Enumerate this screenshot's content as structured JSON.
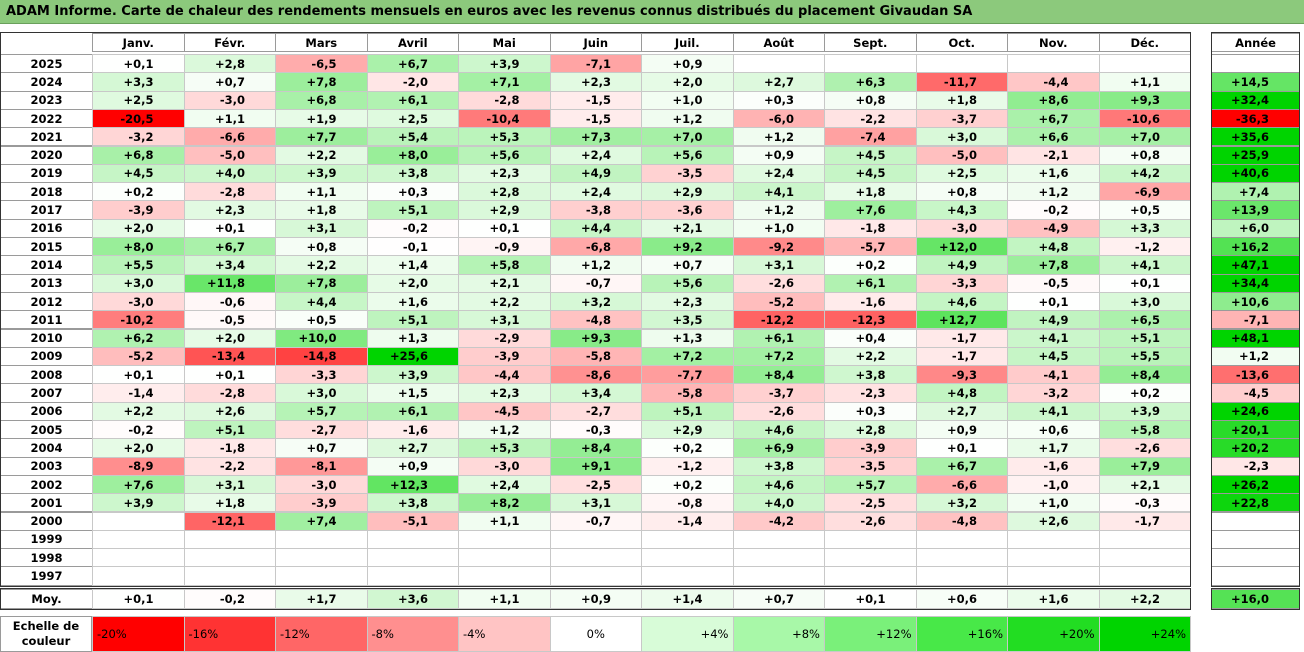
{
  "title": "ADAM Informe. Carte de chaleur des rendements mensuels en euros avec les revenus connus distribués du placement Givaudan SA",
  "chart_data": {
    "type": "heatmap",
    "title": "ADAM Informe. Carte de chaleur des rendements mensuels en euros avec les revenus connus distribués du placement Givaudan SA",
    "months": [
      "Janv.",
      "Févr.",
      "Mars",
      "Avril",
      "Mai",
      "Juin",
      "Juil.",
      "Août",
      "Sept.",
      "Oct.",
      "Nov.",
      "Déc."
    ],
    "year_header": "Année",
    "rows": [
      {
        "year": "2025",
        "values": [
          "+0,1",
          "+2,8",
          "-6,5",
          "+6,7",
          "+3,9",
          "-7,1",
          "+0,9",
          "",
          "",
          "",
          "",
          ""
        ],
        "annual": ""
      },
      {
        "year": "2024",
        "values": [
          "+3,3",
          "+0,7",
          "+7,8",
          "-2,0",
          "+7,1",
          "+2,3",
          "+2,0",
          "+2,7",
          "+6,3",
          "-11,7",
          "-4,4",
          "+1,1"
        ],
        "annual": "+14,5"
      },
      {
        "year": "2023",
        "values": [
          "+2,5",
          "-3,0",
          "+6,8",
          "+6,1",
          "-2,8",
          "-1,5",
          "+1,0",
          "+0,3",
          "+0,8",
          "+1,8",
          "+8,6",
          "+9,3"
        ],
        "annual": "+32,4"
      },
      {
        "year": "2022",
        "values": [
          "-20,5",
          "+1,1",
          "+1,9",
          "+2,5",
          "-10,4",
          "-1,5",
          "+1,2",
          "-6,0",
          "-2,2",
          "-3,7",
          "+6,7",
          "-10,6"
        ],
        "annual": "-36,3"
      },
      {
        "year": "2021",
        "values": [
          "-3,2",
          "-6,6",
          "+7,7",
          "+5,4",
          "+5,3",
          "+7,3",
          "+7,0",
          "+1,2",
          "-7,4",
          "+3,0",
          "+6,6",
          "+7,0"
        ],
        "annual": "+35,6"
      },
      {
        "year": "2020",
        "values": [
          "+6,8",
          "-5,0",
          "+2,2",
          "+8,0",
          "+5,6",
          "+2,4",
          "+5,6",
          "+0,9",
          "+4,5",
          "-5,0",
          "-2,1",
          "+0,8"
        ],
        "annual": "+25,9"
      },
      {
        "year": "2019",
        "values": [
          "+4,5",
          "+4,0",
          "+3,9",
          "+3,8",
          "+2,3",
          "+4,9",
          "-3,5",
          "+2,4",
          "+4,5",
          "+2,5",
          "+1,6",
          "+4,2"
        ],
        "annual": "+40,6"
      },
      {
        "year": "2018",
        "values": [
          "+0,2",
          "-2,8",
          "+1,1",
          "+0,3",
          "+2,8",
          "+2,4",
          "+2,9",
          "+4,1",
          "+1,8",
          "+0,8",
          "+1,2",
          "-6,9"
        ],
        "annual": "+7,4"
      },
      {
        "year": "2017",
        "values": [
          "-3,9",
          "+2,3",
          "+1,8",
          "+5,1",
          "+2,9",
          "-3,8",
          "-3,6",
          "+1,2",
          "+7,6",
          "+4,3",
          "-0,2",
          "+0,5"
        ],
        "annual": "+13,9"
      },
      {
        "year": "2016",
        "values": [
          "+2,0",
          "+0,1",
          "+3,1",
          "-0,2",
          "+0,1",
          "+4,4",
          "+2,1",
          "+1,0",
          "-1,8",
          "-3,0",
          "-4,9",
          "+3,3"
        ],
        "annual": "+6,0"
      },
      {
        "year": "2015",
        "values": [
          "+8,0",
          "+6,7",
          "+0,8",
          "-0,1",
          "-0,9",
          "-6,8",
          "+9,2",
          "-9,2",
          "-5,7",
          "+12,0",
          "+4,8",
          "-1,2"
        ],
        "annual": "+16,2"
      },
      {
        "year": "2014",
        "values": [
          "+5,5",
          "+3,4",
          "+2,2",
          "+1,4",
          "+5,8",
          "+1,2",
          "+0,7",
          "+3,1",
          "+0,2",
          "+4,9",
          "+7,8",
          "+4,1"
        ],
        "annual": "+47,1"
      },
      {
        "year": "2013",
        "values": [
          "+3,0",
          "+11,8",
          "+7,8",
          "+2,0",
          "+2,1",
          "-0,7",
          "+5,6",
          "-2,6",
          "+6,1",
          "-3,3",
          "-0,5",
          "+0,1"
        ],
        "annual": "+34,4"
      },
      {
        "year": "2012",
        "values": [
          "-3,0",
          "-0,6",
          "+4,4",
          "+1,6",
          "+2,2",
          "+3,2",
          "+2,3",
          "-5,2",
          "-1,6",
          "+4,6",
          "+0,1",
          "+3,0"
        ],
        "annual": "+10,6"
      },
      {
        "year": "2011",
        "values": [
          "-10,2",
          "-0,5",
          "+0,5",
          "+5,1",
          "+3,1",
          "-4,8",
          "+3,5",
          "-12,2",
          "-12,3",
          "+12,7",
          "+4,9",
          "+6,5"
        ],
        "annual": "-7,1"
      },
      {
        "year": "2010",
        "values": [
          "+6,2",
          "+2,0",
          "+10,0",
          "+1,3",
          "-2,9",
          "+9,3",
          "+1,3",
          "+6,1",
          "+0,4",
          "-1,7",
          "+4,1",
          "+5,1"
        ],
        "annual": "+48,1"
      },
      {
        "year": "2009",
        "values": [
          "-5,2",
          "-13,4",
          "-14,8",
          "+25,6",
          "-3,9",
          "-5,8",
          "+7,2",
          "+7,2",
          "+2,2",
          "-1,7",
          "+4,5",
          "+5,5"
        ],
        "annual": "+1,2"
      },
      {
        "year": "2008",
        "values": [
          "+0,1",
          "+0,1",
          "-3,3",
          "+3,9",
          "-4,4",
          "-8,6",
          "-7,7",
          "+8,4",
          "+3,8",
          "-9,3",
          "-4,1",
          "+8,4"
        ],
        "annual": "-13,6"
      },
      {
        "year": "2007",
        "values": [
          "-1,4",
          "-2,8",
          "+3,0",
          "+1,5",
          "+2,3",
          "+3,4",
          "-5,8",
          "-3,7",
          "-2,3",
          "+4,8",
          "-3,2",
          "+0,2"
        ],
        "annual": "-4,5"
      },
      {
        "year": "2006",
        "values": [
          "+2,2",
          "+2,6",
          "+5,7",
          "+6,1",
          "-4,5",
          "-2,7",
          "+5,1",
          "-2,6",
          "+0,3",
          "+2,7",
          "+4,1",
          "+3,9"
        ],
        "annual": "+24,6"
      },
      {
        "year": "2005",
        "values": [
          "-0,2",
          "+5,1",
          "-2,7",
          "-1,6",
          "+1,2",
          "-0,3",
          "+2,9",
          "+4,6",
          "+2,8",
          "+0,9",
          "+0,6",
          "+5,8"
        ],
        "annual": "+20,1"
      },
      {
        "year": "2004",
        "values": [
          "+2,0",
          "-1,8",
          "+0,7",
          "+2,7",
          "+5,3",
          "+8,4",
          "+0,2",
          "+6,9",
          "-3,9",
          "+0,1",
          "+1,7",
          "-2,6"
        ],
        "annual": "+20,2"
      },
      {
        "year": "2003",
        "values": [
          "-8,9",
          "-2,2",
          "-8,1",
          "+0,9",
          "-3,0",
          "+9,1",
          "-1,2",
          "+3,8",
          "-3,5",
          "+6,7",
          "-1,6",
          "+7,9"
        ],
        "annual": "-2,3"
      },
      {
        "year": "2002",
        "values": [
          "+7,6",
          "+3,1",
          "-3,0",
          "+12,3",
          "+2,4",
          "-2,5",
          "+0,2",
          "+4,6",
          "+5,7",
          "-6,6",
          "-1,0",
          "+2,1"
        ],
        "annual": "+26,2"
      },
      {
        "year": "2001",
        "values": [
          "+3,9",
          "+1,8",
          "-3,9",
          "+3,8",
          "+8,2",
          "+3,1",
          "-0,8",
          "+4,0",
          "-2,5",
          "+3,2",
          "+1,0",
          "-0,3"
        ],
        "annual": "+22,8"
      },
      {
        "year": "2000",
        "values": [
          "",
          "-12,1",
          "+7,4",
          "-5,1",
          "+1,1",
          "-0,7",
          "-1,4",
          "-4,2",
          "-2,6",
          "-4,8",
          "+2,6",
          "-1,7"
        ],
        "annual": ""
      },
      {
        "year": "1999",
        "values": [
          "",
          "",
          "",
          "",
          "",
          "",
          "",
          "",
          "",
          "",
          "",
          ""
        ],
        "annual": ""
      },
      {
        "year": "1998",
        "values": [
          "",
          "",
          "",
          "",
          "",
          "",
          "",
          "",
          "",
          "",
          "",
          ""
        ],
        "annual": ""
      },
      {
        "year": "1997",
        "values": [
          "",
          "",
          "",
          "",
          "",
          "",
          "",
          "",
          "",
          "",
          "",
          ""
        ],
        "annual": ""
      }
    ],
    "average": {
      "label": "Moy.",
      "values": [
        "+0,1",
        "-0,2",
        "+1,7",
        "+3,6",
        "+1,1",
        "+0,9",
        "+1,4",
        "+0,7",
        "+0,1",
        "+0,6",
        "+1,6",
        "+2,2"
      ],
      "annual": "+16,0"
    },
    "color_scale": {
      "label": "Echelle de couleur",
      "steps": [
        {
          "label": "-20%",
          "value": -20,
          "color": "#ff0000"
        },
        {
          "label": "-16%",
          "value": -16,
          "color": "#ff3333"
        },
        {
          "label": "-12%",
          "value": -12,
          "color": "#ff6666"
        },
        {
          "label": "-8%",
          "value": -8,
          "color": "#ff8f8f"
        },
        {
          "label": "-4%",
          "value": -4,
          "color": "#ffc4c4"
        },
        {
          "label": "0%",
          "value": 0,
          "color": "#ffffff"
        },
        {
          "label": "+4%",
          "value": 4,
          "color": "#d8fcd8"
        },
        {
          "label": "+8%",
          "value": 8,
          "color": "#a8f8a8"
        },
        {
          "label": "+12%",
          "value": 12,
          "color": "#7af07a"
        },
        {
          "label": "+16%",
          "value": 16,
          "color": "#48e848"
        },
        {
          "label": "+20%",
          "value": 20,
          "color": "#22dd22"
        },
        {
          "label": "+24%",
          "value": 24,
          "color": "#00d400"
        }
      ]
    }
  }
}
